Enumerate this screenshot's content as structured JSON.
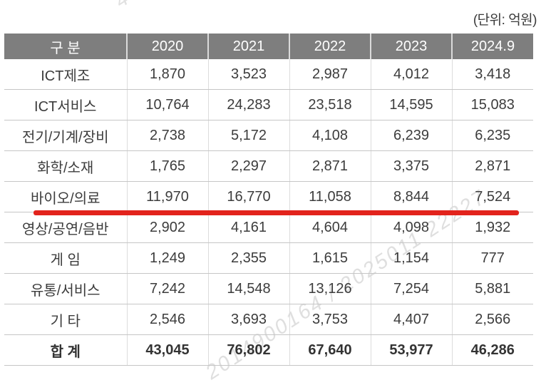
{
  "unit_label": "(단위: 억원)",
  "watermark": {
    "text": "2014900164 / 2025011 22227",
    "fragment": "4"
  },
  "colors": {
    "header_bg": "#7e7e7e",
    "header_text": "#ffffff",
    "body_text": "#3c3c3c",
    "row_border": "#c6c6c6",
    "highlight_line": "#e2231c"
  },
  "table": {
    "columns": [
      "구 분",
      "2020",
      "2021",
      "2022",
      "2023",
      "2024.9"
    ],
    "rows": [
      {
        "label": "ICT제조",
        "values": [
          "1,870",
          "3,523",
          "2,987",
          "4,012",
          "3,418"
        ]
      },
      {
        "label": "ICT서비스",
        "values": [
          "10,764",
          "24,283",
          "23,518",
          "14,595",
          "15,083"
        ]
      },
      {
        "label": "전기/기계/장비",
        "values": [
          "2,738",
          "5,172",
          "4,108",
          "6,239",
          "6,235"
        ]
      },
      {
        "label": "화학/소재",
        "values": [
          "1,765",
          "2,297",
          "2,871",
          "3,375",
          "2,871"
        ]
      },
      {
        "label": "바이오/의료",
        "values": [
          "11,970",
          "16,770",
          "11,058",
          "8,844",
          "7,524"
        ],
        "highlighted": true
      },
      {
        "label": "영상/공연/음반",
        "values": [
          "2,902",
          "4,161",
          "4,604",
          "4,098",
          "1,932"
        ]
      },
      {
        "label": "게 임",
        "values": [
          "1,249",
          "2,355",
          "1,615",
          "1,154",
          "777"
        ]
      },
      {
        "label": "유통/서비스",
        "values": [
          "7,242",
          "14,548",
          "13,126",
          "7,254",
          "5,881"
        ]
      },
      {
        "label": "기 타",
        "values": [
          "2,546",
          "3,693",
          "3,753",
          "4,407",
          "2,566"
        ]
      }
    ],
    "total_row": {
      "label": "합 계",
      "values": [
        "43,045",
        "76,802",
        "67,640",
        "53,977",
        "46,286"
      ]
    }
  }
}
